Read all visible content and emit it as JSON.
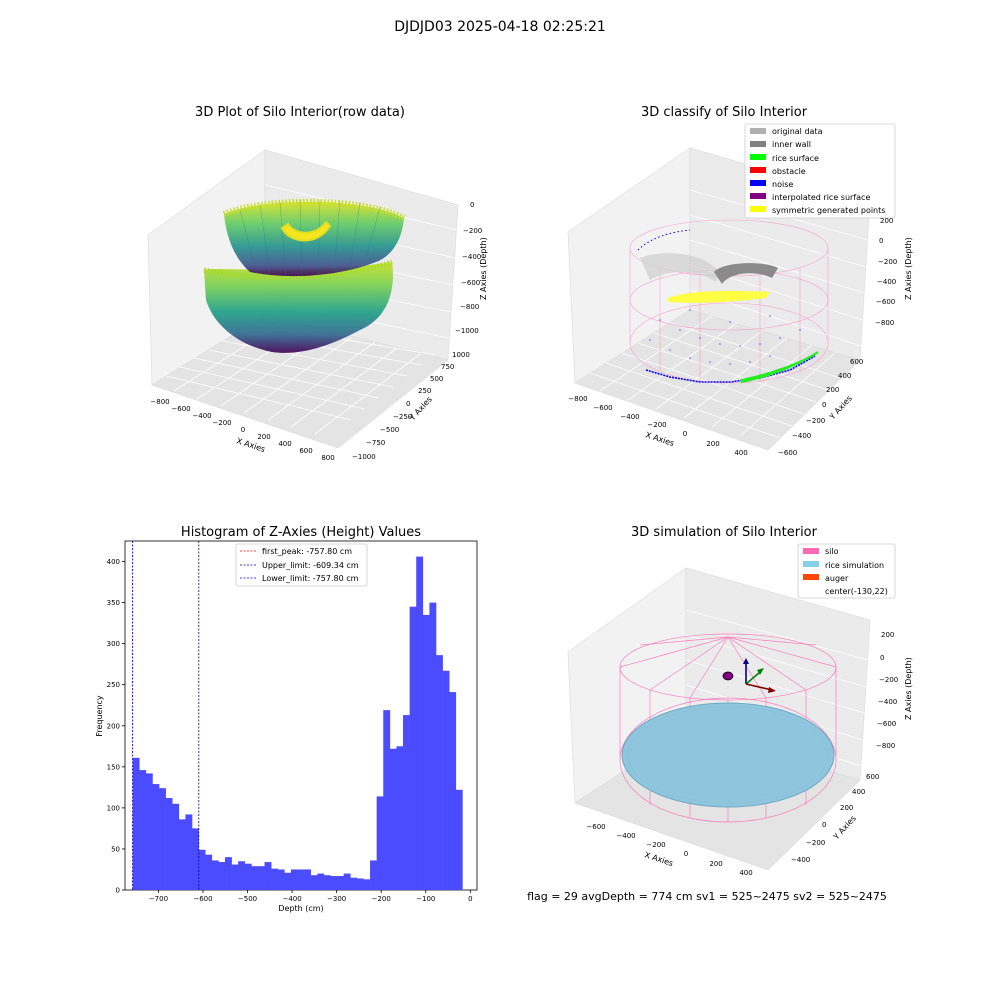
{
  "suptitle": "DJDJD03 2025-04-18 02:25:21",
  "footer_text": "flag = 29  avgDepth = 774 cm  sv1 = 525~2475  sv2 = 525~2475",
  "chart_data": [
    {
      "type": "scatter3d",
      "title": "3D Plot of Silo Interior(row data)",
      "xlabel": "X Axies",
      "ylabel": "Y Axies",
      "zlabel": "Z Axies (Depth)",
      "x_ticks": [
        "−800",
        "−600",
        "−400",
        "−200",
        "0",
        "200",
        "400",
        "600",
        "800"
      ],
      "y_ticks": [
        "−1000",
        "−750",
        "−500",
        "−250",
        "0",
        "250",
        "500",
        "750",
        "1000"
      ],
      "z_ticks": [
        "0",
        "−200",
        "−400",
        "−600",
        "−800",
        "−1000"
      ],
      "colormap": "viridis"
    },
    {
      "type": "scatter3d",
      "title": "3D classify of Silo Interior",
      "xlabel": "X Axies",
      "ylabel": "Y Axies",
      "zlabel": "Z Axies (Depth)",
      "x_ticks": [
        "−800",
        "−600",
        "−400",
        "−200",
        "0",
        "200",
        "400"
      ],
      "y_ticks": [
        "−600",
        "−400",
        "−200",
        "0",
        "200",
        "400",
        "600"
      ],
      "z_ticks": [
        "200",
        "0",
        "−200",
        "−400",
        "−600",
        "−800"
      ],
      "legend_position": "top-right",
      "legend": [
        {
          "label": "original data",
          "color": "#b0b0b0"
        },
        {
          "label": "inner wall",
          "color": "#808080"
        },
        {
          "label": "rice surface",
          "color": "#00ff00"
        },
        {
          "label": "obstacle",
          "color": "#ff0000"
        },
        {
          "label": "noise",
          "color": "#0000ff"
        },
        {
          "label": "interpolated rice surface",
          "color": "#800080"
        },
        {
          "label": "symmetric generated points",
          "color": "#ffff00"
        }
      ]
    },
    {
      "type": "bar",
      "title": "Histogram of Z-Axies (Height) Values",
      "xlabel": "Depth (cm)",
      "ylabel": "Frequency",
      "xlim": [
        -775,
        15
      ],
      "ylim": [
        0,
        425
      ],
      "x_ticks": [
        -700,
        -600,
        -500,
        -400,
        -300,
        -200,
        -100,
        0
      ],
      "x_tick_labels": [
        "−700",
        "−600",
        "−500",
        "−400",
        "−300",
        "−200",
        "−100",
        "0"
      ],
      "y_ticks": [
        0,
        50,
        100,
        150,
        200,
        250,
        300,
        350,
        400
      ],
      "bar_color": "#4b4bff",
      "bin_start": -757.8,
      "bin_width": 14.8,
      "values": [
        161,
        146,
        142,
        129,
        124,
        112,
        105,
        86,
        92,
        75,
        49,
        43,
        36,
        34,
        40,
        31,
        35,
        32,
        29,
        29,
        34,
        26,
        25,
        21,
        25,
        25,
        25,
        18,
        20,
        18,
        17,
        17,
        20,
        15,
        14,
        13,
        36,
        114,
        219,
        172,
        175,
        213,
        345,
        406,
        335,
        350,
        286,
        267,
        241,
        122
      ],
      "vlines": [
        {
          "label": "first_peak: -757.80 cm",
          "x": -757.8,
          "color": "#ff0000"
        },
        {
          "label": "Upper_limit: -609.34 cm",
          "x": -609.34,
          "color": "#00008b"
        },
        {
          "label": "Lower_limit: -757.80 cm",
          "x": -757.8,
          "color": "#0000ff"
        }
      ],
      "legend_position": "upper-center"
    },
    {
      "type": "scatter3d",
      "title": "3D simulation of Silo Interior",
      "xlabel": "X Axies",
      "ylabel": "Y Axies",
      "zlabel": "Z Axies (Depth)",
      "x_ticks": [
        "−600",
        "−400",
        "−200",
        "0",
        "200",
        "400"
      ],
      "y_ticks": [
        "−400",
        "−200",
        "0",
        "200",
        "400",
        "600"
      ],
      "z_ticks": [
        "200",
        "0",
        "−200",
        "−400",
        "−600",
        "−800"
      ],
      "legend_position": "top-right",
      "legend": [
        {
          "label": "silo",
          "color": "#ff69b4"
        },
        {
          "label": "rice simulation",
          "color": "#87ceeb"
        },
        {
          "label": "auger",
          "color": "#ff4500"
        },
        {
          "label": "center(-130,22)",
          "color": "none"
        }
      ]
    }
  ]
}
